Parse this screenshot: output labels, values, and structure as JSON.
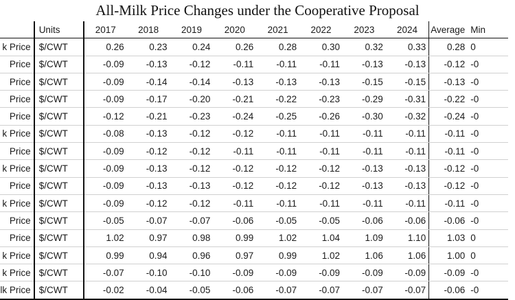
{
  "title": "All-Milk Price Changes under the Cooperative Proposal",
  "table": {
    "header": {
      "label": "",
      "units": "Units",
      "years": [
        "2017",
        "2018",
        "2019",
        "2020",
        "2021",
        "2022",
        "2023",
        "2024"
      ],
      "average": "Average",
      "min": "Min"
    },
    "rows": [
      {
        "label": "k Price",
        "units": "$/CWT",
        "values": [
          "0.26",
          "0.23",
          "0.24",
          "0.26",
          "0.28",
          "0.30",
          "0.32",
          "0.33"
        ],
        "average": "0.28",
        "min": "0"
      },
      {
        "label": "Price",
        "units": "$/CWT",
        "values": [
          "-0.09",
          "-0.13",
          "-0.12",
          "-0.11",
          "-0.11",
          "-0.11",
          "-0.13",
          "-0.13"
        ],
        "average": "-0.12",
        "min": "-0"
      },
      {
        "label": "Price",
        "units": "$/CWT",
        "values": [
          "-0.09",
          "-0.14",
          "-0.14",
          "-0.13",
          "-0.13",
          "-0.13",
          "-0.15",
          "-0.15"
        ],
        "average": "-0.13",
        "min": "-0"
      },
      {
        "label": "Price",
        "units": "$/CWT",
        "values": [
          "-0.09",
          "-0.17",
          "-0.20",
          "-0.21",
          "-0.22",
          "-0.23",
          "-0.29",
          "-0.31"
        ],
        "average": "-0.22",
        "min": "-0"
      },
      {
        "label": "Price",
        "units": "$/CWT",
        "values": [
          "-0.12",
          "-0.21",
          "-0.23",
          "-0.24",
          "-0.25",
          "-0.26",
          "-0.30",
          "-0.32"
        ],
        "average": "-0.24",
        "min": "-0"
      },
      {
        "label": "k Price",
        "units": "$/CWT",
        "values": [
          "-0.08",
          "-0.13",
          "-0.12",
          "-0.12",
          "-0.11",
          "-0.11",
          "-0.11",
          "-0.11"
        ],
        "average": "-0.11",
        "min": "-0"
      },
      {
        "label": "Price",
        "units": "$/CWT",
        "values": [
          "-0.09",
          "-0.12",
          "-0.12",
          "-0.11",
          "-0.11",
          "-0.11",
          "-0.11",
          "-0.11"
        ],
        "average": "-0.11",
        "min": "-0"
      },
      {
        "label": "k Price",
        "units": "$/CWT",
        "values": [
          "-0.09",
          "-0.13",
          "-0.12",
          "-0.12",
          "-0.12",
          "-0.12",
          "-0.13",
          "-0.13"
        ],
        "average": "-0.12",
        "min": "-0"
      },
      {
        "label": "Price",
        "units": "$/CWT",
        "values": [
          "-0.09",
          "-0.13",
          "-0.13",
          "-0.12",
          "-0.12",
          "-0.12",
          "-0.13",
          "-0.13"
        ],
        "average": "-0.12",
        "min": "-0"
      },
      {
        "label": "k Price",
        "units": "$/CWT",
        "values": [
          "-0.09",
          "-0.12",
          "-0.12",
          "-0.11",
          "-0.11",
          "-0.11",
          "-0.11",
          "-0.11"
        ],
        "average": "-0.11",
        "min": "-0"
      },
      {
        "label": "Price",
        "units": "$/CWT",
        "values": [
          "-0.05",
          "-0.07",
          "-0.07",
          "-0.06",
          "-0.05",
          "-0.05",
          "-0.06",
          "-0.06"
        ],
        "average": "-0.06",
        "min": "-0"
      },
      {
        "label": "Price",
        "units": "$/CWT",
        "values": [
          "1.02",
          "0.97",
          "0.98",
          "0.99",
          "1.02",
          "1.04",
          "1.09",
          "1.10"
        ],
        "average": "1.03",
        "min": "0"
      },
      {
        "label": "k Price",
        "units": "$/CWT",
        "values": [
          "0.99",
          "0.94",
          "0.96",
          "0.97",
          "0.99",
          "1.02",
          "1.06",
          "1.06"
        ],
        "average": "1.00",
        "min": "0"
      },
      {
        "label": "k Price",
        "units": "$/CWT",
        "values": [
          "-0.07",
          "-0.10",
          "-0.10",
          "-0.09",
          "-0.09",
          "-0.09",
          "-0.09",
          "-0.09"
        ],
        "average": "-0.09",
        "min": "-0"
      },
      {
        "label": "ilk Price",
        "units": "$/CWT",
        "values": [
          "-0.02",
          "-0.04",
          "-0.05",
          "-0.06",
          "-0.07",
          "-0.07",
          "-0.07",
          "-0.07"
        ],
        "average": "-0.06",
        "min": "-0"
      }
    ]
  }
}
